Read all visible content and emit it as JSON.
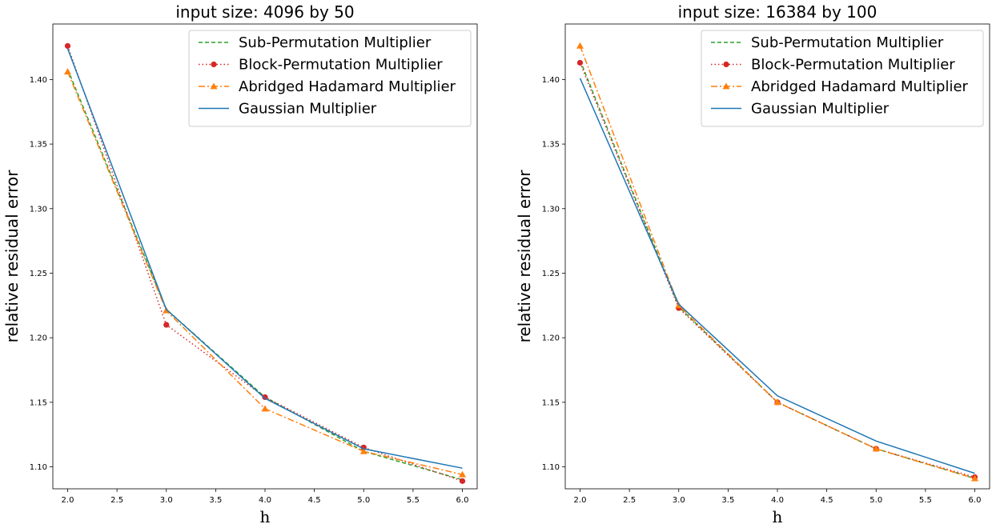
{
  "chart_data": [
    {
      "type": "line",
      "title": "input size: 4096 by 50",
      "xlabel": "h",
      "ylabel": "relative residual error",
      "xlim": [
        1.85,
        6.15
      ],
      "ylim": [
        1.083,
        1.443
      ],
      "xticks": [
        2.0,
        2.5,
        3.0,
        3.5,
        4.0,
        4.5,
        5.0,
        5.5,
        6.0
      ],
      "xtick_labels": [
        "2.0",
        "2.5",
        "3.0",
        "3.5",
        "4.0",
        "4.5",
        "5.0",
        "5.5",
        "6.0"
      ],
      "yticks": [
        1.1,
        1.15,
        1.2,
        1.25,
        1.3,
        1.35,
        1.4
      ],
      "ytick_labels": [
        "1.10",
        "1.15",
        "1.20",
        "1.25",
        "1.30",
        "1.35",
        "1.40"
      ],
      "legend_position": "top-right",
      "grid": false,
      "x": [
        2.0,
        3.0,
        4.0,
        5.0,
        6.0
      ],
      "series": [
        {
          "name": "Sub-Permutation Multiplier",
          "color": "#2ca02c",
          "style": "dashed",
          "marker": "none",
          "values": [
            1.408,
            1.222,
            1.154,
            1.112,
            1.09
          ]
        },
        {
          "name": "Block-Permutation Multiplier",
          "color": "#d62728",
          "style": "dotted",
          "marker": "circle",
          "values": [
            1.426,
            1.21,
            1.154,
            1.115,
            1.089
          ]
        },
        {
          "name": "Abridged Hadamard Multiplier",
          "color": "#ff7f0e",
          "style": "dashdot",
          "marker": "triangle",
          "values": [
            1.406,
            1.221,
            1.145,
            1.112,
            1.094
          ]
        },
        {
          "name": "Gaussian Multiplier",
          "color": "#1f77b4",
          "style": "solid",
          "marker": "none",
          "values": [
            1.424,
            1.222,
            1.153,
            1.114,
            1.099
          ]
        }
      ]
    },
    {
      "type": "line",
      "title": "input size: 16384 by 100",
      "xlabel": "h",
      "ylabel": "relative residual error",
      "xlim": [
        1.85,
        6.15
      ],
      "ylim": [
        1.083,
        1.443
      ],
      "xticks": [
        2.0,
        2.5,
        3.0,
        3.5,
        4.0,
        4.5,
        5.0,
        5.5,
        6.0
      ],
      "xtick_labels": [
        "2.0",
        "2.5",
        "3.0",
        "3.5",
        "4.0",
        "4.5",
        "5.0",
        "5.5",
        "6.0"
      ],
      "yticks": [
        1.1,
        1.15,
        1.2,
        1.25,
        1.3,
        1.35,
        1.4
      ],
      "ytick_labels": [
        "1.10",
        "1.15",
        "1.20",
        "1.25",
        "1.30",
        "1.35",
        "1.40"
      ],
      "legend_position": "top-right",
      "grid": false,
      "x": [
        2.0,
        3.0,
        4.0,
        5.0,
        6.0
      ],
      "series": [
        {
          "name": "Sub-Permutation Multiplier",
          "color": "#2ca02c",
          "style": "dashed",
          "marker": "none",
          "values": [
            1.415,
            1.224,
            1.15,
            1.114,
            1.091
          ]
        },
        {
          "name": "Block-Permutation Multiplier",
          "color": "#d62728",
          "style": "dotted",
          "marker": "circle",
          "values": [
            1.413,
            1.223,
            1.15,
            1.114,
            1.092
          ]
        },
        {
          "name": "Abridged Hadamard Multiplier",
          "color": "#ff7f0e",
          "style": "dashdot",
          "marker": "triangle",
          "values": [
            1.426,
            1.225,
            1.15,
            1.114,
            1.091
          ]
        },
        {
          "name": "Gaussian Multiplier",
          "color": "#1f77b4",
          "style": "solid",
          "marker": "none",
          "values": [
            1.401,
            1.226,
            1.155,
            1.12,
            1.095
          ]
        }
      ]
    }
  ]
}
